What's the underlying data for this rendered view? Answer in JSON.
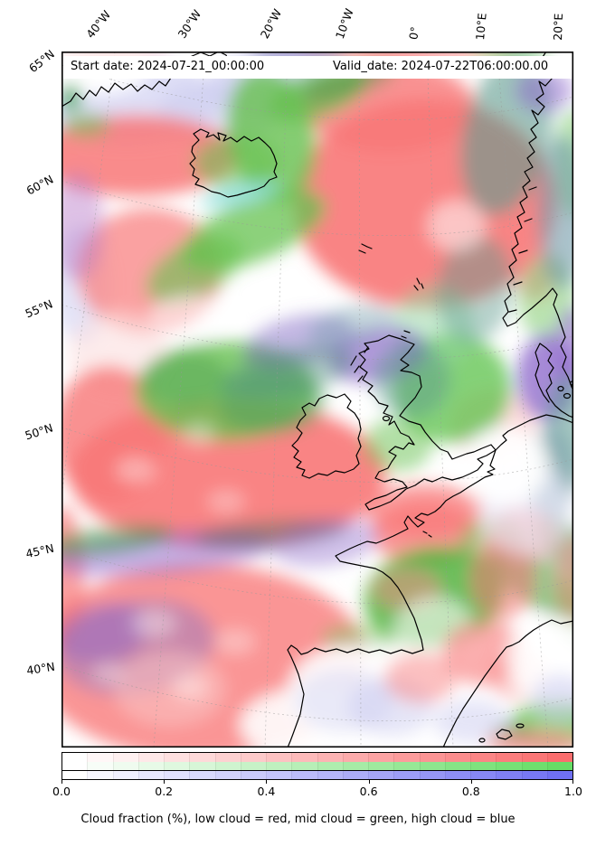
{
  "figure": {
    "title_bar": {
      "start_date": "Start date: 2024-07-21_00:00:00",
      "valid_date": "Valid_date: 2024-07-22T06:00:00.00"
    },
    "caption": "Cloud fraction (%), low cloud = red, mid cloud = green, high cloud = blue"
  },
  "axes": {
    "top_lon_labels": [
      "40°W",
      "30°W",
      "20°W",
      "10°W",
      "0°",
      "10°E",
      "20°E"
    ],
    "left_lat_labels": [
      "65°N",
      "60°N",
      "55°N",
      "50°N",
      "45°N",
      "40°N"
    ]
  },
  "palette": {
    "low_cloud_red": "#fa6e6e",
    "mid_cloud_green": "#66dd66",
    "high_cloud_blue": "#7070f2",
    "coastline": "#000000",
    "graticule": "#999999",
    "background_clear": "#ffffff"
  },
  "chart_data": {
    "type": "heatmap",
    "subtype": "geographic RGB cloud-fraction composite map",
    "start_date": "2024-07-21_00:00:00",
    "valid_date": "2024-07-22T06:00:00.00",
    "x_axis": {
      "side": "top",
      "tick_labels": [
        "40°W",
        "30°W",
        "20°W",
        "10°W",
        "0°",
        "10°E",
        "20°E"
      ]
    },
    "y_axis": {
      "side": "left",
      "tick_labels": [
        "65°N",
        "60°N",
        "55°N",
        "50°N",
        "45°N",
        "40°N"
      ]
    },
    "region": {
      "lon_range": [
        "40°W",
        "20°E"
      ],
      "lat_range": [
        "40°N",
        "65°N"
      ],
      "area": "North Atlantic / Europe"
    },
    "grid": "dashed graticule on",
    "colorbars": [
      {
        "label": "low cloud",
        "min_color": "#ffffff",
        "max_color": "#fa6e6e",
        "range": [
          0.0,
          1.0
        ],
        "segments": 20
      },
      {
        "label": "mid cloud",
        "min_color": "#ffffff",
        "max_color": "#66dd66",
        "range": [
          0.0,
          1.0
        ],
        "segments": 20
      },
      {
        "label": "high cloud",
        "min_color": "#ffffff",
        "max_color": "#7070f2",
        "range": [
          0.0,
          1.0
        ],
        "segments": 20
      }
    ],
    "colorbar_ticks": [
      "0.0",
      "0.2",
      "0.4",
      "0.6",
      "0.8",
      "1.0"
    ],
    "caption": "Cloud fraction (%), low cloud = red, mid cloud = green, high cloud = blue",
    "legend_note": "low cloud = red, mid cloud = green, high cloud = blue"
  }
}
